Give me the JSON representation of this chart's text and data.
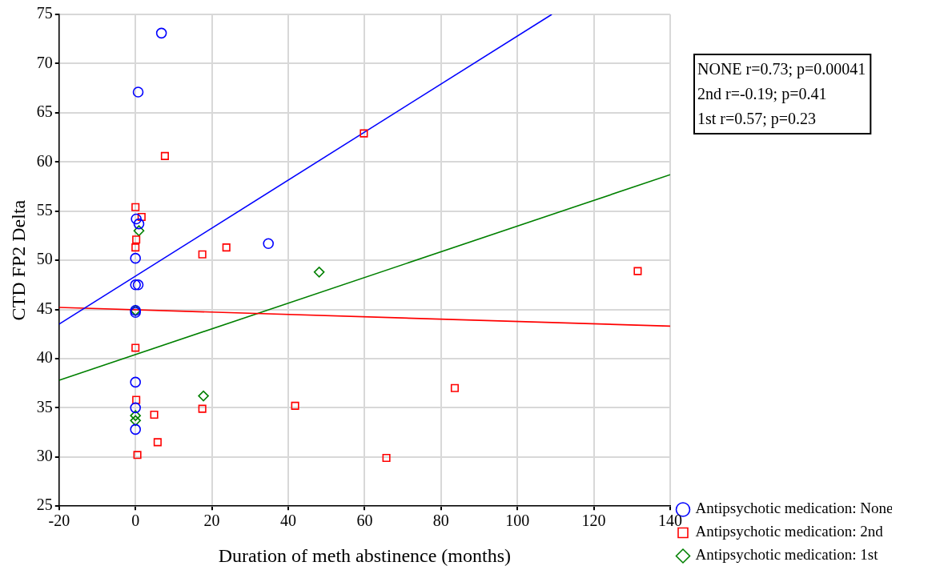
{
  "chart_data": {
    "type": "scatter",
    "xlabel": "Duration of meth abstinence (months)",
    "ylabel": "CTD FP2 Delta",
    "xlim": [
      -20,
      140
    ],
    "xticks": [
      -20,
      0,
      20,
      40,
      60,
      80,
      100,
      120,
      140
    ],
    "ylim": [
      25,
      75
    ],
    "yticks": [
      25,
      30,
      35,
      40,
      45,
      50,
      55,
      60,
      65,
      70,
      75
    ],
    "grid": true,
    "legend": "bottom right",
    "annotations": [
      "NONE r=0.73; p=0.00041",
      "2nd r=-0.19; p=0.41",
      "1st r=0.57; p=0.23"
    ],
    "series": [
      {
        "name": "Antipsychotic medication: None",
        "color": "#0000ff",
        "marker": "circle",
        "x": [
          6.8,
          0.7,
          0.2,
          0.9,
          0,
          0,
          0.7,
          0,
          0,
          0,
          0,
          0,
          34.8
        ],
        "values": [
          73.1,
          67.1,
          54.2,
          53.7,
          50.2,
          47.5,
          47.5,
          44.9,
          44.7,
          37.6,
          35.0,
          32.8,
          51.7
        ]
      },
      {
        "name": "Antipsychotic medication: 2nd",
        "color": "#ff0000",
        "marker": "square",
        "x": [
          7.7,
          0,
          1.6,
          0.2,
          0,
          17.5,
          23.8,
          0,
          0.2,
          4.9,
          5.8,
          0.5,
          17.5,
          41.8,
          59.8,
          65.7,
          83.6,
          131.5
        ],
        "values": [
          60.6,
          55.4,
          54.4,
          52.1,
          51.3,
          50.6,
          51.3,
          41.1,
          35.8,
          34.3,
          31.5,
          30.2,
          34.9,
          35.2,
          62.9,
          29.9,
          37.0,
          48.9
        ]
      },
      {
        "name": "Antipsychotic medication: 1st",
        "color": "#008000",
        "marker": "diamond",
        "x": [
          0.9,
          0,
          0,
          0,
          17.8,
          48.1
        ],
        "values": [
          53.0,
          44.9,
          34.2,
          33.7,
          36.2,
          48.8
        ]
      },
      {
        "type": "line",
        "color": "#0000ff",
        "marker": "none",
        "x": [
          -20,
          109
        ],
        "values": [
          43.5,
          75
        ]
      },
      {
        "type": "line",
        "color": "#ff0000",
        "marker": "none",
        "x": [
          -20,
          140
        ],
        "values": [
          45.2,
          43.3
        ]
      },
      {
        "type": "line",
        "color": "#008000",
        "marker": "none",
        "x": [
          -20,
          140
        ],
        "values": [
          37.8,
          58.7
        ]
      }
    ]
  }
}
